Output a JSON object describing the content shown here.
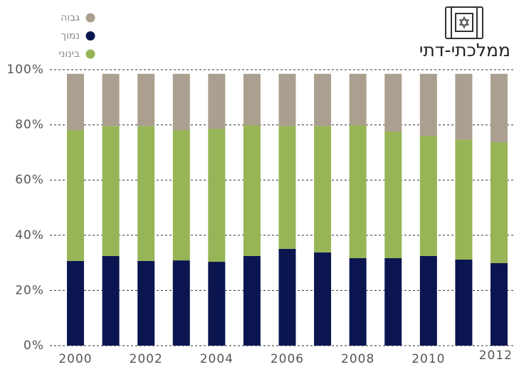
{
  "chart_data": {
    "type": "stacked_bar",
    "title": "ממלכתי-דתי",
    "categories": [
      "2000",
      null,
      "2002",
      null,
      "2004",
      null,
      "2006",
      null,
      "2008",
      null,
      "2010",
      null,
      "2012"
    ],
    "series": [
      {
        "name": "נמוך",
        "color": "#0b1650",
        "values": [
          30.7,
          32.5,
          30.7,
          30.9,
          30.4,
          32.5,
          35.1,
          33.8,
          31.7,
          31.7,
          32.5,
          31.2,
          29.9
        ]
      },
      {
        "name": "בינוני",
        "color": "#97b556",
        "values": [
          47.4,
          47.1,
          48.9,
          47.2,
          48.2,
          47.4,
          44.5,
          45.8,
          48.2,
          45.9,
          43.5,
          43.5,
          43.8
        ]
      },
      {
        "name": "גבוה",
        "color": "#aba08f",
        "values": [
          20.4,
          18.9,
          18.9,
          20.4,
          19.9,
          18.6,
          18.9,
          18.9,
          18.6,
          20.9,
          22.5,
          23.8,
          24.8
        ]
      }
    ],
    "legend_order": [
      2,
      0,
      1
    ],
    "ylim": [
      0,
      100
    ],
    "yticks": [
      {
        "value": 0,
        "label": "0%"
      },
      {
        "value": 20,
        "label": "20%"
      },
      {
        "value": 40,
        "label": "40%"
      },
      {
        "value": 60,
        "label": "60%"
      },
      {
        "value": 80,
        "label": "80%"
      },
      {
        "value": 100,
        "label": "100%"
      }
    ],
    "grid": true
  }
}
